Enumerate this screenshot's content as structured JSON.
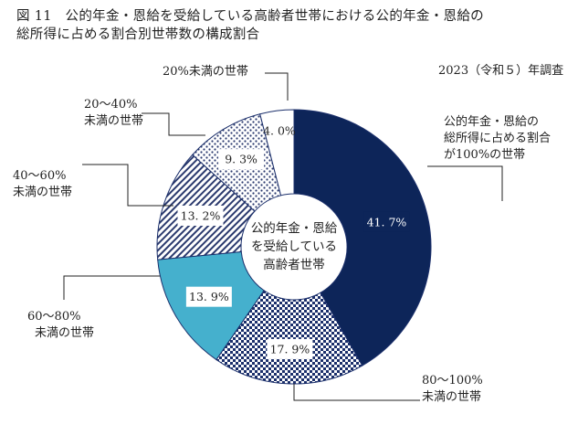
{
  "title_line1": "図 11　公的年金・恩給を受給している高齢者世帯における公的年金・恩給の",
  "title_line2": "総所得に占める割合別世帯数の構成割合",
  "survey_note": "2023（令和５）年調査",
  "center_label": [
    "公的年金・恩給",
    "を受給している",
    "高齢者世帯"
  ],
  "chart_data": {
    "type": "pie",
    "title": "図 11　公的年金・恩給を受給している高齢者世帯における公的年金・恩給の総所得に占める割合別世帯数の構成割合",
    "categories": [
      "公的年金・恩給の総所得に占める割合が100%の世帯",
      "80～100%未満の世帯",
      "60～80%未満の世帯",
      "40～60%未満の世帯",
      "20～40%未満の世帯",
      "20%未満の世帯"
    ],
    "values": [
      41.7,
      17.9,
      13.9,
      13.2,
      9.3,
      4.0
    ],
    "value_labels": [
      "41.7%",
      "17.9%",
      "13.9%",
      "13.2%",
      "9.3%",
      "4.0%"
    ],
    "slice_text": [
      "41. 7%",
      "17. 9%",
      "13. 9%",
      "13. 2%",
      "9. 3%",
      "4. 0%"
    ],
    "callouts": [
      [
        "公的年金・恩給の",
        "総所得に占める割合",
        "が100%の世帯"
      ],
      [
        "80～100%",
        "未満の世帯"
      ],
      [
        "60～80%",
        "未満の世帯"
      ],
      [
        "40～60%",
        "未満の世帯"
      ],
      [
        "20～40%",
        "未満の世帯"
      ],
      [
        "20%未満の世帯"
      ]
    ],
    "colors": [
      "#0d2559",
      "#1b2f6b",
      "#45b0cd",
      "#2b3a6e",
      "#2b3a6e",
      "#ffffff"
    ],
    "fills": [
      "solid",
      "checker",
      "solid",
      "diagonal-hatch",
      "dots",
      "solid"
    ],
    "start_angle": "12 o'clock",
    "direction": "clockwise",
    "donut": true
  }
}
